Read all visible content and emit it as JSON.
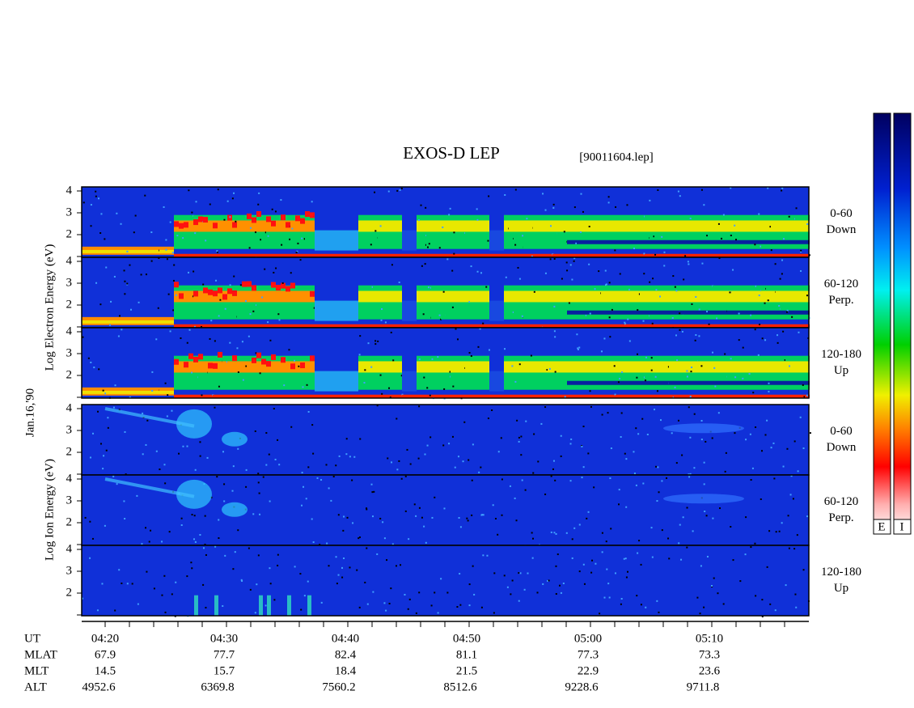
{
  "header": {
    "title": "EXOS-D LEP",
    "file": "[90011604.lep]"
  },
  "y_axis": {
    "electron_label": "Log Electron Energy (eV)",
    "ion_label": "Log Ion Energy (eV)",
    "date": "Jan.16,'90",
    "ticks": [
      "4",
      "3",
      "2"
    ]
  },
  "panels": [
    {
      "label": "0-60",
      "sub": "Down"
    },
    {
      "label": "60-120",
      "sub": "Perp."
    },
    {
      "label": "120-180",
      "sub": "Up"
    },
    {
      "label": "0-60",
      "sub": "Down"
    },
    {
      "label": "60-120",
      "sub": "Perp."
    },
    {
      "label": "120-180",
      "sub": "Up"
    }
  ],
  "colorbar": {
    "labels": [
      "E",
      "I"
    ]
  },
  "footer": {
    "row_labels": [
      "UT",
      "MLAT",
      "MLT",
      "ALT"
    ],
    "columns": [
      [
        "04:20",
        "67.9",
        "14.5",
        "4952.6"
      ],
      [
        "04:30",
        "77.7",
        "15.7",
        "6369.8"
      ],
      [
        "04:40",
        "82.4",
        "18.4",
        "7560.2"
      ],
      [
        "04:50",
        "81.1",
        "21.5",
        "8512.6"
      ],
      [
        "05:00",
        "77.3",
        "22.9",
        "9228.6"
      ],
      [
        "05:10",
        "73.3",
        "23.6",
        "9711.8"
      ]
    ]
  }
}
